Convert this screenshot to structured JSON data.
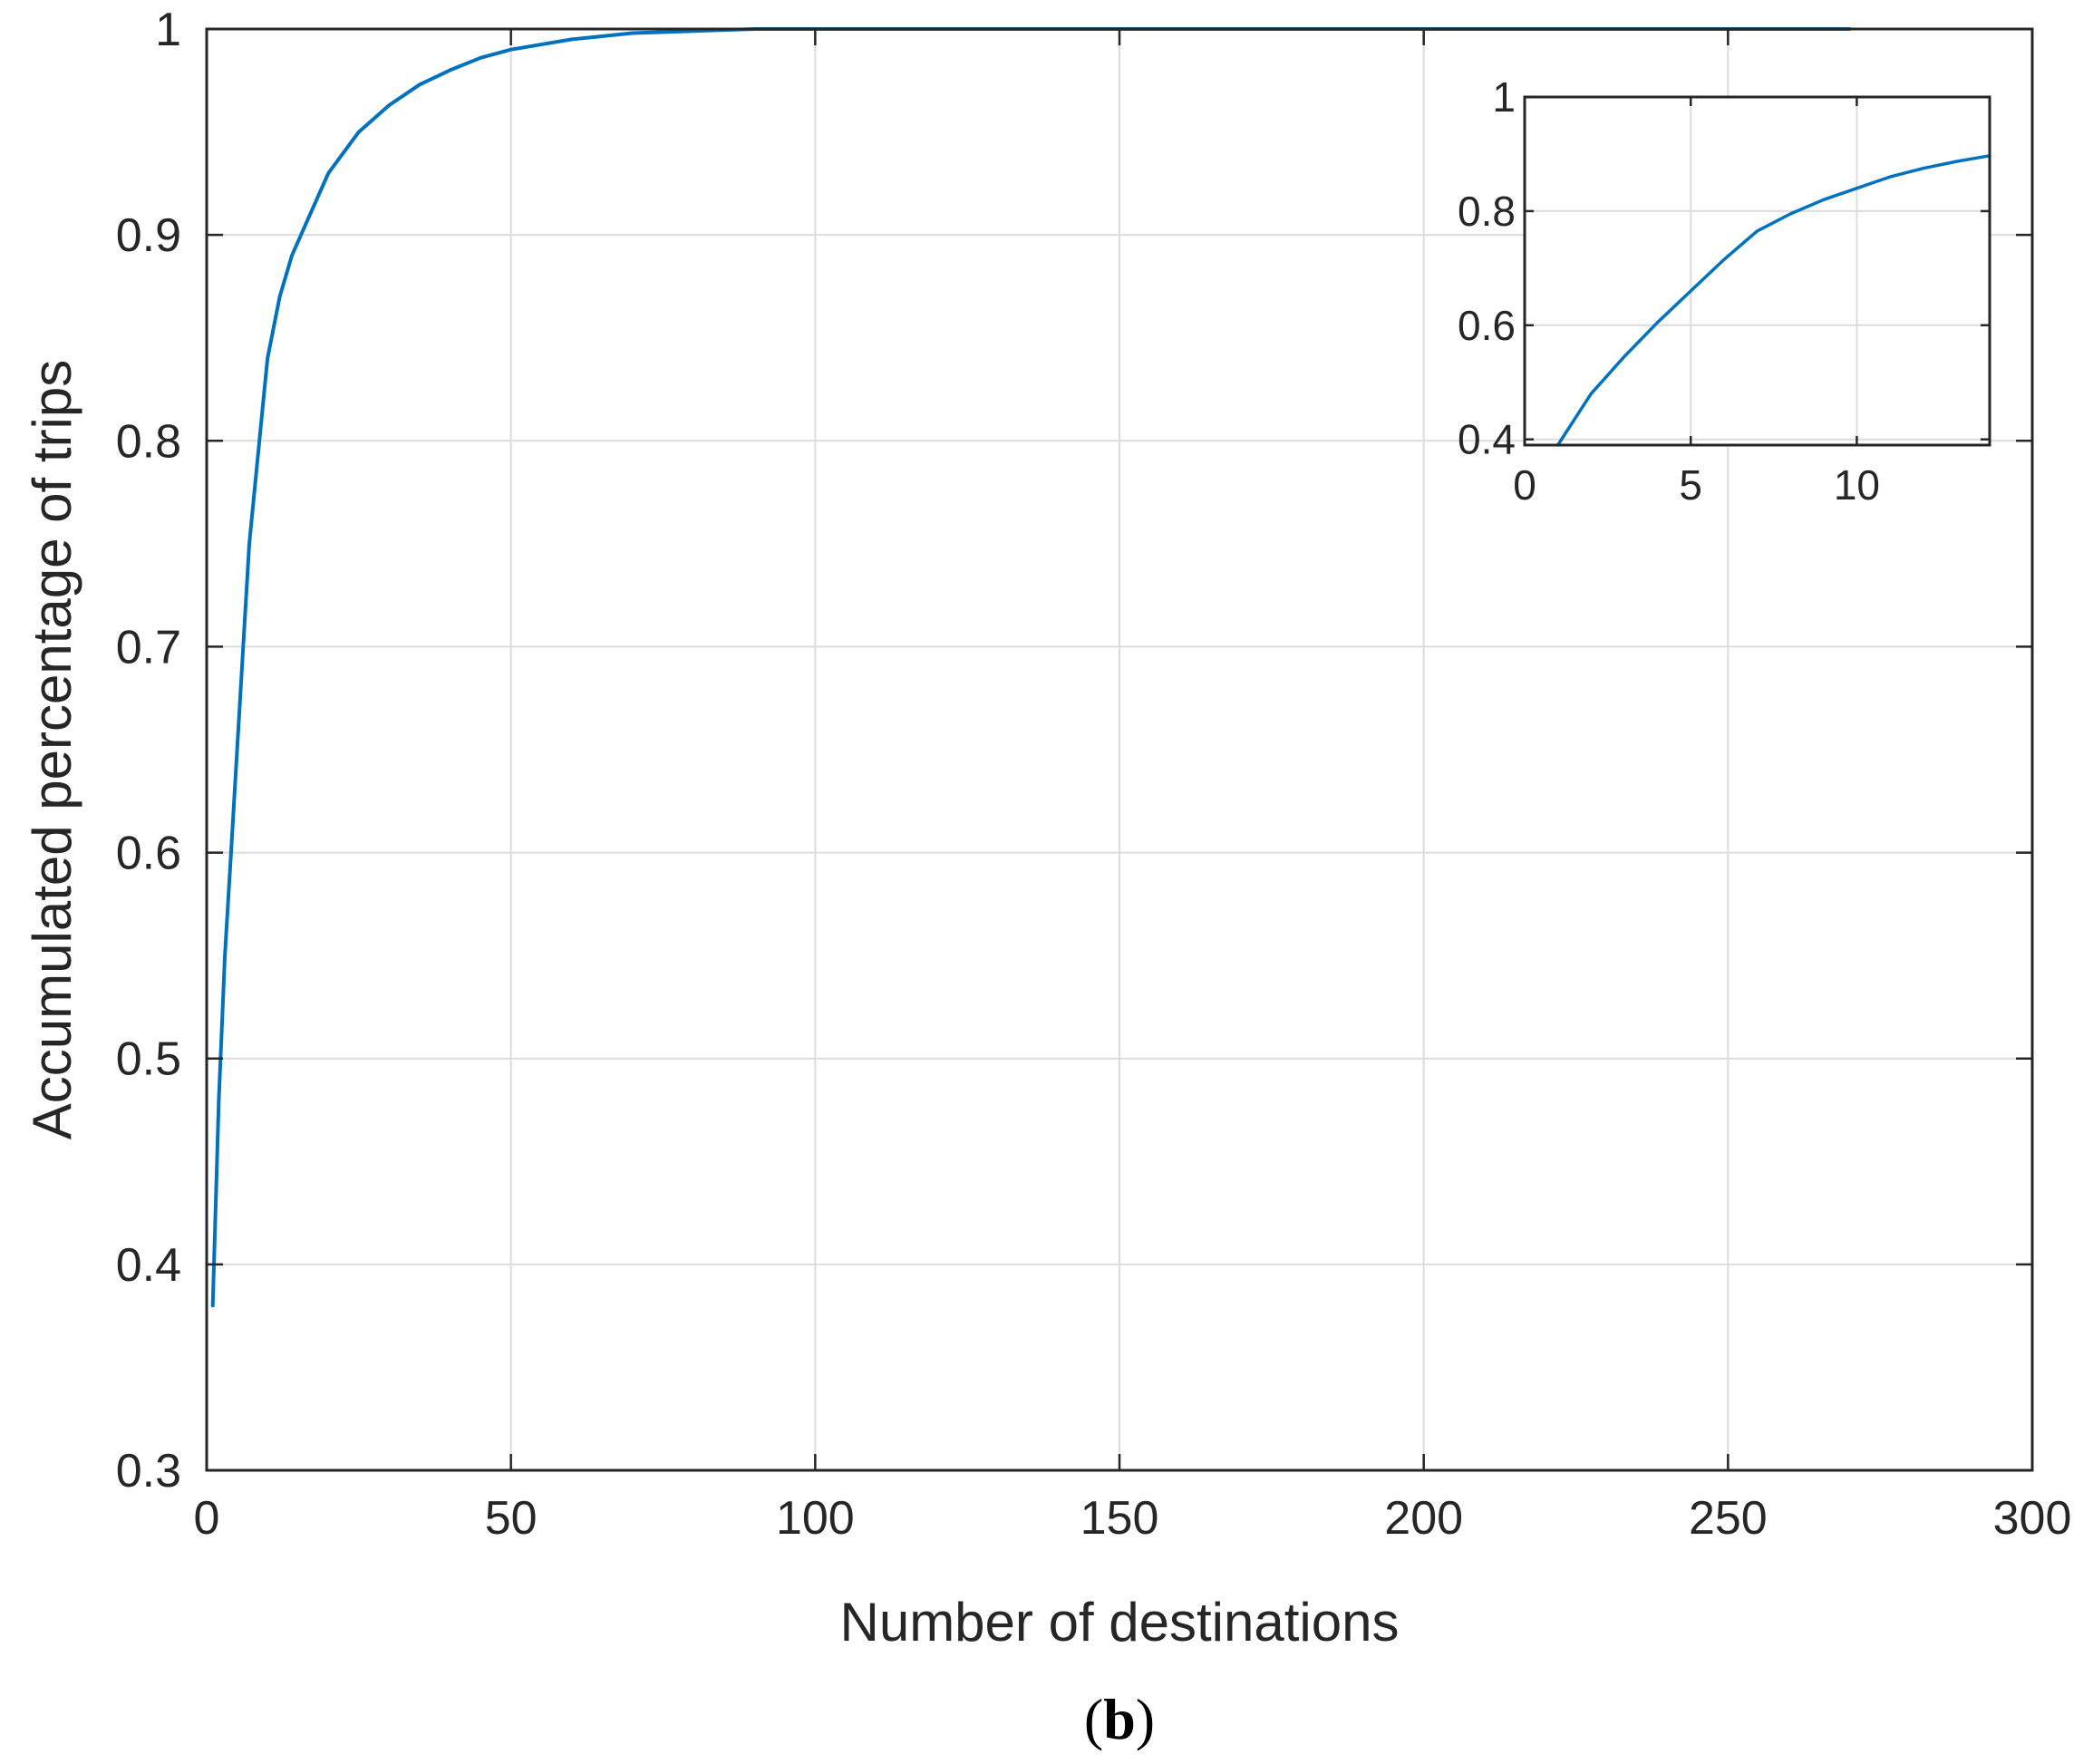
{
  "chart_data": [
    {
      "type": "line",
      "title": "",
      "xlabel": "Number of destinations",
      "ylabel": "Accumulated percentage of trips",
      "xlim": [
        0,
        300
      ],
      "ylim": [
        0.3,
        1
      ],
      "xticks": [
        "0",
        "50",
        "100",
        "150",
        "200",
        "250",
        "300"
      ],
      "yticks": [
        "0.3",
        "0.4",
        "0.5",
        "0.6",
        "0.7",
        "0.8",
        "0.9",
        "1"
      ],
      "grid": true,
      "line_color": "#0072BD",
      "series": [
        {
          "x": [
            1,
            2,
            3,
            4,
            5,
            6,
            7,
            8,
            9,
            10,
            12,
            14,
            17,
            20,
            25,
            30,
            35,
            40,
            45,
            50,
            60,
            70,
            80,
            90,
            100,
            120,
            150,
            200,
            250,
            270
          ],
          "y": [
            0.38,
            0.48,
            0.55,
            0.6,
            0.65,
            0.7,
            0.75,
            0.78,
            0.81,
            0.84,
            0.87,
            0.89,
            0.91,
            0.93,
            0.95,
            0.963,
            0.973,
            0.98,
            0.986,
            0.99,
            0.995,
            0.998,
            0.999,
            1,
            1,
            1,
            1,
            1,
            1,
            1
          ]
        }
      ]
    },
    {
      "type": "line",
      "title": "",
      "xlabel": "",
      "ylabel": "",
      "xlim": [
        0,
        14
      ],
      "ylim": [
        0.39,
        1
      ],
      "xticks": [
        "0",
        "5",
        "10"
      ],
      "yticks": [
        "0.4",
        "0.6",
        "0.8",
        "1"
      ],
      "grid": true,
      "line_color": "#0072BD",
      "series": [
        {
          "x": [
            1,
            2,
            3,
            4,
            5,
            6,
            7,
            8,
            9,
            10,
            11,
            12,
            13,
            14
          ],
          "y": [
            0.39,
            0.48,
            0.545,
            0.605,
            0.66,
            0.715,
            0.765,
            0.795,
            0.82,
            0.84,
            0.86,
            0.875,
            0.887,
            0.897
          ]
        }
      ]
    }
  ],
  "panel_label": "(b)"
}
